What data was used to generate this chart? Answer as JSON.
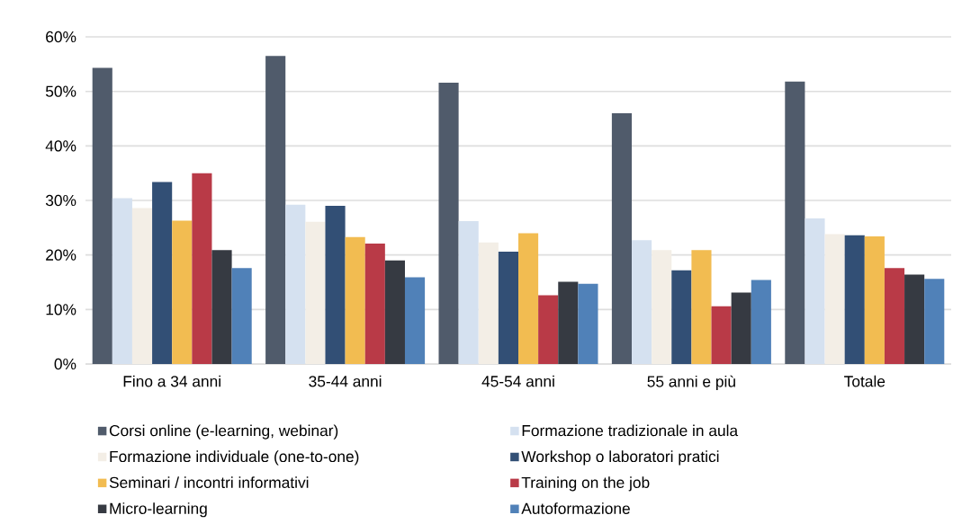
{
  "chart_data": {
    "type": "bar",
    "categories": [
      "Fino a 34 anni",
      "35-44 anni",
      "45-54 anni",
      "55 anni e più",
      "Totale"
    ],
    "series": [
      {
        "name": "Corsi online (e-learning, webinar)",
        "color": "#505b6b",
        "values": [
          54.3,
          56.5,
          51.6,
          46.0,
          51.8
        ]
      },
      {
        "name": "Formazione tradizionale in aula",
        "color": "#d5e1f0",
        "values": [
          30.4,
          29.2,
          26.2,
          22.7,
          26.7
        ]
      },
      {
        "name": "Formazione individuale (one-to-one)",
        "color": "#f3eee6",
        "values": [
          28.6,
          26.1,
          22.3,
          20.9,
          23.8
        ]
      },
      {
        "name": "Workshop o laboratori pratici",
        "color": "#324f75",
        "values": [
          33.4,
          29.0,
          20.6,
          17.2,
          23.6
        ]
      },
      {
        "name": "Seminari / incontri informativi",
        "color": "#f2bc51",
        "values": [
          26.3,
          23.3,
          24.0,
          20.9,
          23.4
        ]
      },
      {
        "name": "Training on the job",
        "color": "#b93a47",
        "values": [
          35.0,
          22.1,
          12.6,
          10.6,
          17.6
        ]
      },
      {
        "name": "Micro-learning",
        "color": "#363a42",
        "values": [
          20.9,
          19.0,
          15.1,
          13.1,
          16.4
        ]
      },
      {
        "name": "Autoformazione",
        "color": "#5081b8",
        "values": [
          17.6,
          15.9,
          14.7,
          15.4,
          15.6
        ]
      }
    ],
    "ylim": [
      0,
      60
    ],
    "yticks": [
      {
        "value": 0,
        "label": "0%"
      },
      {
        "value": 10,
        "label": "10%"
      },
      {
        "value": 20,
        "label": "20%"
      },
      {
        "value": 30,
        "label": "30%"
      },
      {
        "value": 40,
        "label": "40%"
      },
      {
        "value": 50,
        "label": "50%"
      },
      {
        "value": 60,
        "label": "60%"
      }
    ],
    "grid": "y",
    "legend": "bottom"
  }
}
